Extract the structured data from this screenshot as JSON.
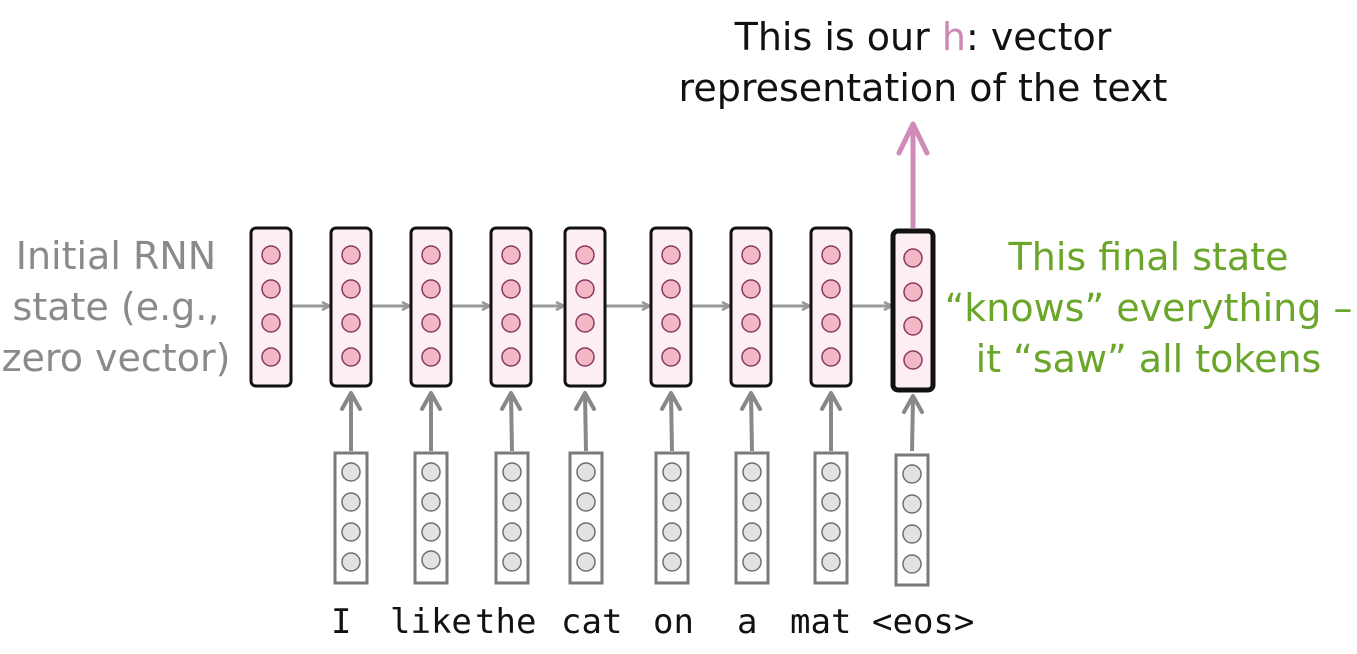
{
  "diagram": {
    "top_note": {
      "before": "This is our ",
      "highlight": "h",
      "after": ": vector",
      "line2": "representation of the text"
    },
    "left_note": [
      "Initial RNN",
      "state (e.g.,",
      "zero vector)"
    ],
    "right_note": [
      "This final state",
      "“knows” everything –",
      "it “saw” all tokens"
    ],
    "tokens": [
      "I",
      "like",
      "the",
      "cat",
      "on",
      "a",
      "mat",
      "<eos>"
    ],
    "colors": {
      "state_fill": "#fdeef3",
      "state_dot": "#f2b8c6",
      "state_dot_stroke": "#8a3a60",
      "embedding_dot": "#e2e2e2",
      "arrow": "#999999",
      "output_arrow": "#d08bb8",
      "highlight": "#cc88b6",
      "left_text": "#8a8a8a",
      "right_text": "#6aa629"
    },
    "units_per_vector": 4
  }
}
